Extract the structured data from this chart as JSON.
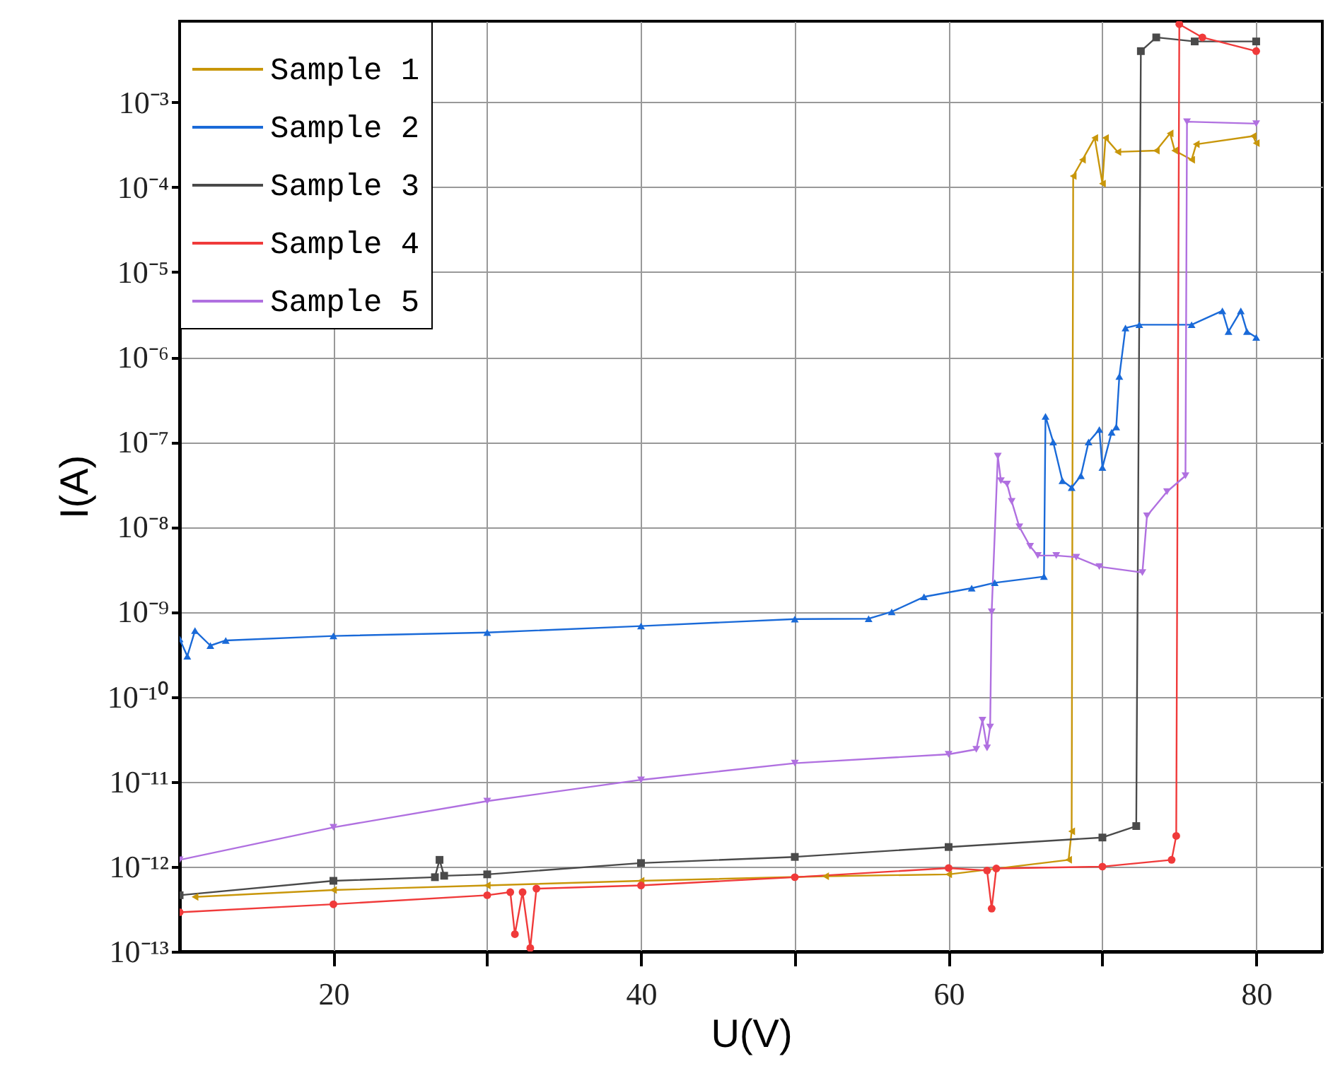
{
  "chart_data": {
    "type": "line",
    "xlabel": "U(V)",
    "ylabel": "I(A)",
    "log": "y",
    "grid": true,
    "legend": "top left",
    "xlim": [
      10,
      84.3
    ],
    "xticks": [
      20,
      {
        "value": 30,
        "label": null
      },
      40,
      {
        "value": 50,
        "label": null
      },
      60,
      {
        "value": 70,
        "label": null
      },
      80
    ],
    "ylim": [
      1e-13,
      0.009
    ],
    "yticks": [
      {
        "value": 1e-13,
        "label": "10⁻¹³"
      },
      {
        "value": 1e-12,
        "label": "10⁻¹²"
      },
      {
        "value": 1e-11,
        "label": "10⁻¹¹"
      },
      {
        "value": 1e-10,
        "label": "10⁻¹⁰"
      },
      {
        "value": 1e-09,
        "label": "10⁻⁹"
      },
      {
        "value": 1e-08,
        "label": "10⁻⁸"
      },
      {
        "value": 1e-07,
        "label": "10⁻⁷"
      },
      {
        "value": 1e-06,
        "label": "10⁻⁶"
      },
      {
        "value": 1e-05,
        "label": "10⁻⁵"
      },
      {
        "value": 0.0001,
        "label": "10⁻⁴"
      },
      {
        "value": 0.001,
        "label": "10⁻³"
      }
    ],
    "series": [
      {
        "name": "Sample 1",
        "color": "#c8960a",
        "marker": "triangle",
        "x": [
          11,
          20,
          30,
          40,
          52,
          60,
          67.8,
          68.0,
          68.1,
          68.7,
          69.5,
          70.0,
          70.2,
          71.0,
          73.5,
          74.4,
          74.7,
          75.8,
          76.1,
          79.8,
          80
        ],
        "values": [
          4.4e-13,
          5.3e-13,
          6e-13,
          6.8e-13,
          7.7e-13,
          8.1e-13,
          1.2e-12,
          2.6e-12,
          0.000135,
          0.00021,
          0.00038,
          0.00011,
          0.00038,
          0.00026,
          0.00027,
          0.00043,
          0.00027,
          0.00021,
          0.00032,
          0.0004,
          0.00033
        ]
      },
      {
        "name": "Sample 2",
        "color": "#1a6ad8",
        "marker": "triangle",
        "x": [
          10,
          10.5,
          11,
          12,
          13,
          20,
          30,
          40,
          50,
          54.8,
          56.3,
          58.4,
          61.5,
          63,
          66.2,
          66.3,
          66.8,
          67.4,
          68.0,
          68.6,
          69.1,
          69.8,
          70.0,
          70.6,
          70.9,
          71.1,
          71.5,
          72.4,
          75.8,
          77.8,
          78.2,
          79.0,
          79.4,
          80
        ],
        "values": [
          4.8e-10,
          3e-10,
          6e-10,
          4e-10,
          4.6e-10,
          5.2e-10,
          5.7e-10,
          6.8e-10,
          8.2e-10,
          8.3e-10,
          1e-09,
          1.5e-09,
          1.9e-09,
          2.2e-09,
          2.6e-09,
          2e-07,
          1e-07,
          3.5e-08,
          2.9e-08,
          4e-08,
          1e-07,
          1.4e-07,
          5e-08,
          1.3e-07,
          1.5e-07,
          5.9e-07,
          2.2e-06,
          2.4e-06,
          2.4e-06,
          3.5e-06,
          2e-06,
          3.5e-06,
          2e-06,
          1.7e-06
        ]
      },
      {
        "name": "Sample 3",
        "color": "#4a4a4a",
        "marker": "square",
        "x": [
          10,
          20,
          26.6,
          26.9,
          27.2,
          30,
          40,
          50,
          60,
          70,
          72.2,
          72.5,
          73.5,
          76,
          80
        ],
        "values": [
          4.6e-13,
          6.8e-13,
          7.5e-13,
          1.2e-12,
          7.8e-13,
          8.1e-13,
          1.1e-12,
          1.3e-12,
          1.7e-12,
          2.2e-12,
          3e-12,
          0.004,
          0.0058,
          0.0052,
          0.0052
        ]
      },
      {
        "name": "Sample 4",
        "color": "#f03a3a",
        "marker": "circle",
        "x": [
          10,
          20,
          30,
          31.5,
          31.8,
          32.3,
          32.8,
          33.2,
          40,
          50,
          60,
          62.5,
          62.8,
          63.1,
          70,
          74.5,
          74.8,
          75.0,
          76.5,
          80
        ],
        "values": [
          2.9e-13,
          3.6e-13,
          4.6e-13,
          5e-13,
          1.6e-13,
          5e-13,
          1.1e-13,
          5.5e-13,
          6e-13,
          7.5e-13,
          9.6e-13,
          9e-13,
          3.2e-13,
          9.5e-13,
          1e-12,
          1.2e-12,
          2.3e-12,
          0.0083,
          0.0058,
          0.004
        ]
      },
      {
        "name": "Sample 5",
        "color": "#b070e0",
        "marker": "triangle",
        "x": [
          10,
          20,
          30,
          40,
          50,
          60,
          61.8,
          62.2,
          62.5,
          62.7,
          62.8,
          63.2,
          63.4,
          63.8,
          64.1,
          64.6,
          65.3,
          65.8,
          67.0,
          68.3,
          69.8,
          72.6,
          72.9,
          74.2,
          75.4,
          75.5,
          80
        ],
        "values": [
          1.2e-12,
          2.9e-12,
          5.9e-12,
          1.05e-11,
          1.65e-11,
          2.1e-11,
          2.4e-11,
          5.3e-11,
          2.5e-11,
          4.4e-11,
          1e-09,
          6.8e-08,
          3.5e-08,
          3.2e-08,
          2e-08,
          1e-08,
          5.9e-09,
          4.6e-09,
          4.6e-09,
          4.4e-09,
          3.4e-09,
          2.9e-09,
          1.35e-08,
          2.6e-08,
          4e-08,
          0.00059,
          0.00056
        ]
      }
    ]
  }
}
